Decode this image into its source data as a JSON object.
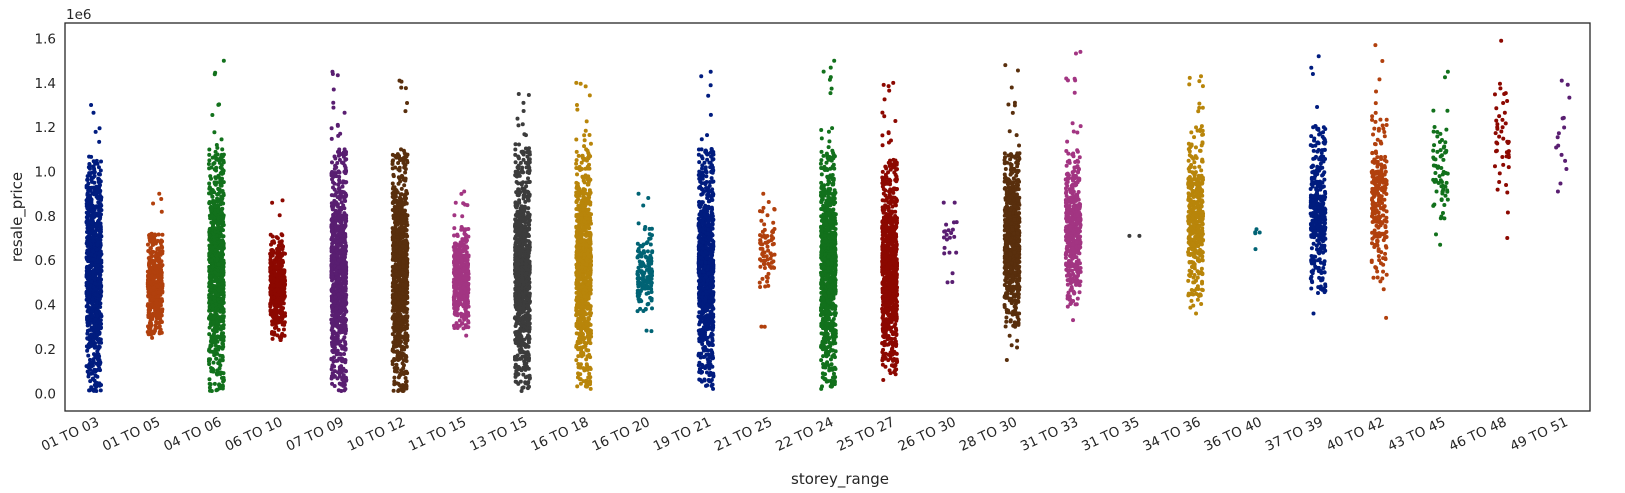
{
  "chart_data": {
    "type": "scatter",
    "subtype": "strip",
    "title": "",
    "xlabel": "storey_range",
    "ylabel": "resale_price",
    "y_offset_label": "1e6",
    "ylim": [
      -0.08,
      1.67
    ],
    "yticks": [
      "0.0",
      "0.2",
      "0.4",
      "0.6",
      "0.8",
      "1.0",
      "1.2",
      "1.4",
      "1.6"
    ],
    "ytick_values": [
      0.0,
      0.2,
      0.4,
      0.6,
      0.8,
      1.0,
      1.2,
      1.4,
      1.6
    ],
    "x_tick_rotation": 25,
    "grid": false,
    "legend": "none",
    "categories": [
      "01 TO 03",
      "01 TO 05",
      "04 TO 06",
      "06 TO 10",
      "07 TO 09",
      "10 TO 12",
      "11 TO 15",
      "13 TO 15",
      "16 TO 18",
      "16 TO 20",
      "19 TO 21",
      "21 TO 25",
      "22 TO 24",
      "25 TO 27",
      "26 TO 30",
      "28 TO 30",
      "31 TO 33",
      "31 TO 35",
      "34 TO 36",
      "36 TO 40",
      "37 TO 39",
      "40 TO 42",
      "43 TO 45",
      "46 TO 48",
      "49 TO 51"
    ],
    "series": [
      {
        "category": "01 TO 03",
        "color": "#001c7f",
        "min": 0.01,
        "max": 1.3,
        "dense_low": 0.01,
        "dense_high": 1.05,
        "n": 900
      },
      {
        "category": "01 TO 05",
        "color": "#b1400d",
        "min": 0.25,
        "max": 0.9,
        "dense_low": 0.26,
        "dense_high": 0.72,
        "n": 420
      },
      {
        "category": "04 TO 06",
        "color": "#12711c",
        "min": 0.01,
        "max": 1.5,
        "dense_low": 0.01,
        "dense_high": 1.1,
        "n": 900
      },
      {
        "category": "06 TO 10",
        "color": "#8c0800",
        "min": 0.24,
        "max": 0.87,
        "dense_low": 0.25,
        "dense_high": 0.72,
        "n": 420
      },
      {
        "category": "07 TO 09",
        "color": "#591e71",
        "min": 0.01,
        "max": 1.45,
        "dense_low": 0.01,
        "dense_high": 1.1,
        "n": 900
      },
      {
        "category": "10 TO 12",
        "color": "#592f0d",
        "min": 0.01,
        "max": 1.41,
        "dense_low": 0.01,
        "dense_high": 1.1,
        "n": 900
      },
      {
        "category": "11 TO 15",
        "color": "#a23582",
        "min": 0.26,
        "max": 0.91,
        "dense_low": 0.28,
        "dense_high": 0.75,
        "n": 420
      },
      {
        "category": "13 TO 15",
        "color": "#3c3c3c",
        "min": 0.01,
        "max": 1.35,
        "dense_low": 0.02,
        "dense_high": 1.1,
        "n": 900
      },
      {
        "category": "16 TO 18",
        "color": "#b8850a",
        "min": 0.02,
        "max": 1.4,
        "dense_low": 0.03,
        "dense_high": 1.1,
        "n": 900
      },
      {
        "category": "16 TO 20",
        "color": "#006374",
        "min": 0.28,
        "max": 0.9,
        "dense_low": 0.35,
        "dense_high": 0.75,
        "n": 160
      },
      {
        "category": "19 TO 21",
        "color": "#001c7f",
        "min": 0.02,
        "max": 1.45,
        "dense_low": 0.03,
        "dense_high": 1.1,
        "n": 900
      },
      {
        "category": "21 TO 25",
        "color": "#b1400d",
        "min": 0.3,
        "max": 0.9,
        "dense_low": 0.45,
        "dense_high": 0.85,
        "n": 80
      },
      {
        "category": "22 TO 24",
        "color": "#12711c",
        "min": 0.02,
        "max": 1.5,
        "dense_low": 0.03,
        "dense_high": 1.1,
        "n": 900
      },
      {
        "category": "25 TO 27",
        "color": "#8c0800",
        "min": 0.06,
        "max": 1.4,
        "dense_low": 0.1,
        "dense_high": 1.05,
        "n": 900
      },
      {
        "category": "26 TO 30",
        "color": "#591e71",
        "min": 0.5,
        "max": 0.86,
        "dense_low": 0.5,
        "dense_high": 0.86,
        "n": 22
      },
      {
        "category": "28 TO 30",
        "color": "#592f0d",
        "min": 0.15,
        "max": 1.48,
        "dense_low": 0.3,
        "dense_high": 1.1,
        "n": 700
      },
      {
        "category": "31 TO 33",
        "color": "#a23582",
        "min": 0.33,
        "max": 1.54,
        "dense_low": 0.4,
        "dense_high": 1.1,
        "n": 450
      },
      {
        "category": "31 TO 35",
        "color": "#3c3c3c",
        "min": 0.71,
        "max": 0.71,
        "dense_low": 0.71,
        "dense_high": 0.71,
        "n": 2
      },
      {
        "category": "34 TO 36",
        "color": "#b8850a",
        "min": 0.36,
        "max": 1.43,
        "dense_low": 0.4,
        "dense_high": 1.2,
        "n": 420
      },
      {
        "category": "36 TO 40",
        "color": "#006374",
        "min": 0.65,
        "max": 0.74,
        "dense_low": 0.65,
        "dense_high": 0.74,
        "n": 5
      },
      {
        "category": "37 TO 39",
        "color": "#001c7f",
        "min": 0.36,
        "max": 1.52,
        "dense_low": 0.45,
        "dense_high": 1.2,
        "n": 380
      },
      {
        "category": "40 TO 42",
        "color": "#b1400d",
        "min": 0.34,
        "max": 1.57,
        "dense_low": 0.5,
        "dense_high": 1.25,
        "n": 240
      },
      {
        "category": "43 TO 45",
        "color": "#12711c",
        "min": 0.67,
        "max": 1.45,
        "dense_low": 0.75,
        "dense_high": 1.3,
        "n": 70
      },
      {
        "category": "46 TO 48",
        "color": "#8c0800",
        "min": 0.7,
        "max": 1.59,
        "dense_low": 0.8,
        "dense_high": 1.45,
        "n": 45
      },
      {
        "category": "49 TO 51",
        "color": "#591e71",
        "min": 0.91,
        "max": 1.41,
        "dense_low": 0.91,
        "dense_high": 1.41,
        "n": 15
      }
    ]
  }
}
